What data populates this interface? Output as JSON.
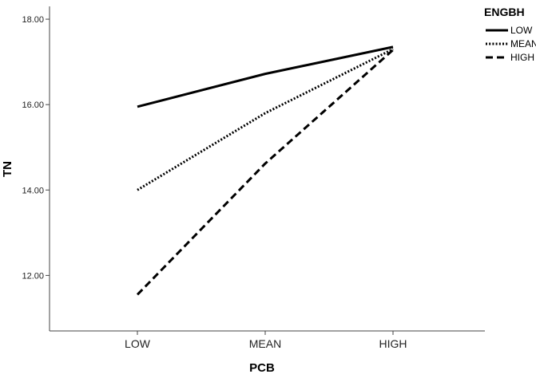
{
  "chart_data": {
    "type": "line",
    "categories": [
      "LOW",
      "MEAN",
      "HIGH"
    ],
    "xlabel": "PCB",
    "ylabel": "TN",
    "ylim": [
      10.7,
      18.3
    ],
    "yticks": [
      "12.00",
      "14.00",
      "16.00",
      "18.00"
    ],
    "grid": false,
    "legend": {
      "title": "ENGBH",
      "placement": "top-right"
    },
    "series": [
      {
        "name": "LOW",
        "style": "solid",
        "values": [
          15.95,
          16.72,
          17.35
        ]
      },
      {
        "name": "MEAN",
        "style": "dotted",
        "values": [
          14.0,
          15.8,
          17.3
        ]
      },
      {
        "name": "HIGH",
        "style": "dashed",
        "values": [
          11.55,
          14.62,
          17.28
        ]
      }
    ]
  },
  "colors": {
    "line": "#000000",
    "axis": "#444444",
    "background": "#ffffff"
  }
}
